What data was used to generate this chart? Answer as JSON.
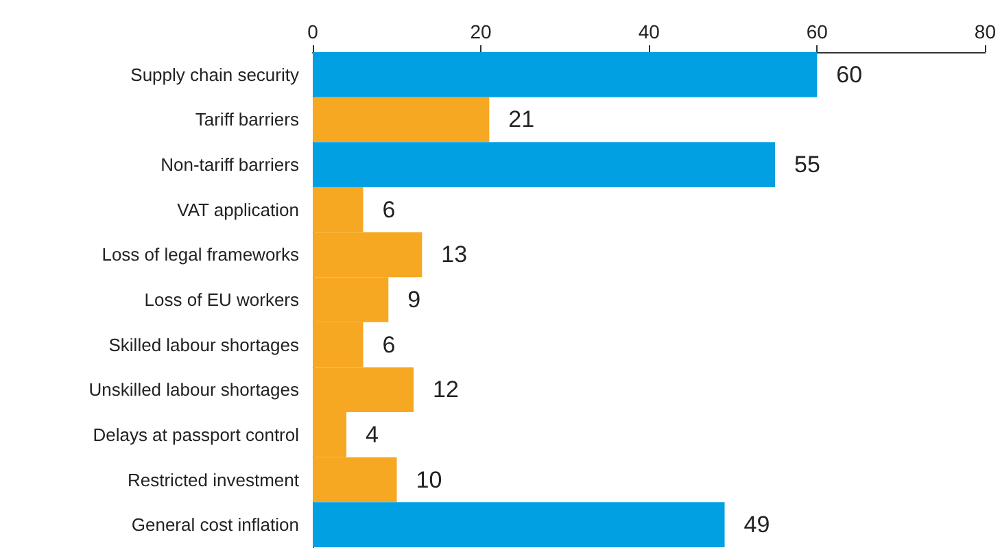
{
  "chart_data": {
    "type": "bar",
    "orientation": "horizontal",
    "categories": [
      "Supply chain security",
      "Tariff barriers",
      "Non-tariff barriers",
      "VAT application",
      "Loss of legal frameworks",
      "Loss of EU workers",
      "Skilled labour shortages",
      "Unskilled labour shortages",
      "Delays at passport control",
      "Restricted investment",
      "General cost inflation"
    ],
    "values": [
      60,
      21,
      55,
      6,
      13,
      9,
      6,
      12,
      4,
      10,
      49
    ],
    "colors": [
      "#00a0e3",
      "#f7a823",
      "#00a0e3",
      "#f7a823",
      "#f7a823",
      "#f7a823",
      "#f7a823",
      "#f7a823",
      "#f7a823",
      "#f7a823",
      "#00a0e3"
    ],
    "xlim": [
      0,
      80
    ],
    "xticks": [
      0,
      20,
      40,
      60,
      80
    ],
    "data_labels": true,
    "grid": false
  }
}
